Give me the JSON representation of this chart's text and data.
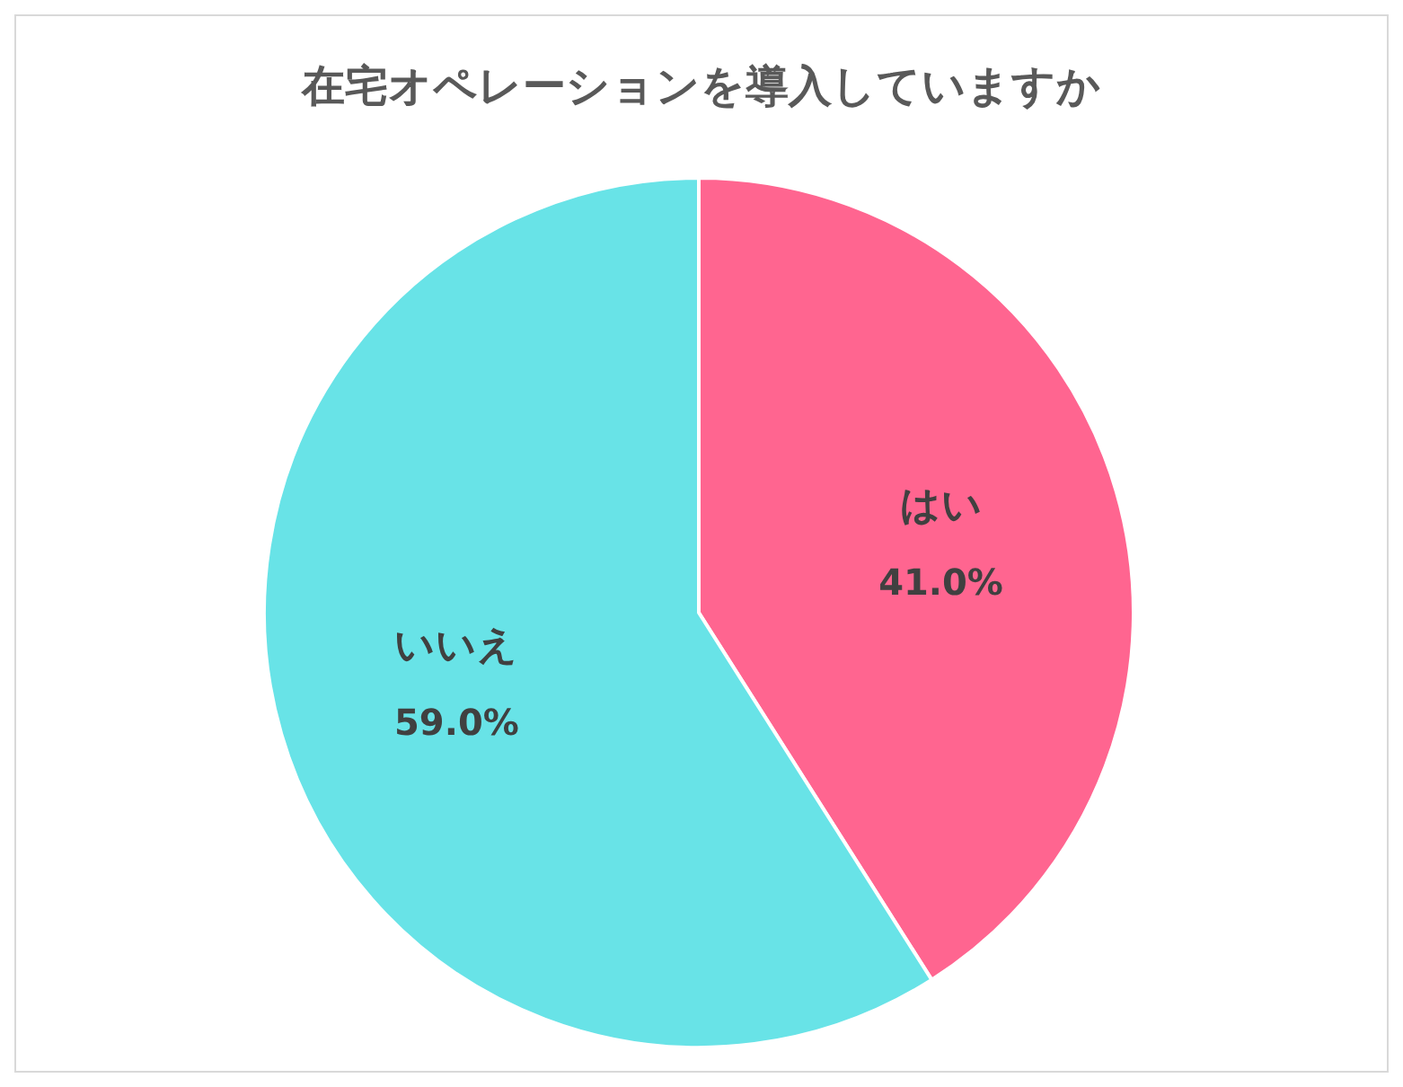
{
  "chart_data": {
    "type": "pie",
    "title": "在宅オペレーションを導入していますか",
    "categories": [
      "はい",
      "いいえ"
    ],
    "values": [
      41.0,
      59.0
    ],
    "colors": [
      "#ff6590",
      "#68e3e7"
    ],
    "value_labels": [
      "41.0%",
      "59.0%"
    ],
    "legend": false
  }
}
